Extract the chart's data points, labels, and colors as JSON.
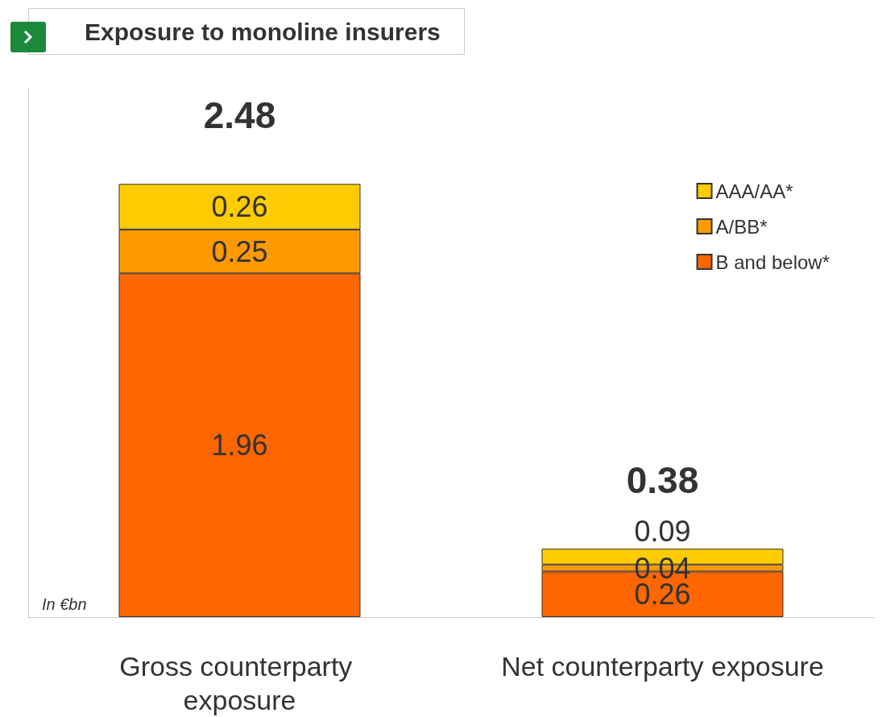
{
  "chart_data": {
    "type": "bar",
    "title": "Exposure to monoline insurers",
    "stacked": true,
    "relative": false,
    "categories": [
      "Gross counterparty exposure",
      "Net counterparty exposure"
    ],
    "series": [
      {
        "name": "B and below*",
        "color": "#ff6600",
        "values": [
          1.96,
          0.26
        ]
      },
      {
        "name": "A/BB*",
        "color": "#ff9900",
        "values": [
          0.25,
          0.04
        ]
      },
      {
        "name": "AAA/AA*",
        "color": "#ffcc00",
        "values": [
          0.26,
          0.09
        ]
      }
    ],
    "data_labels": true,
    "totals": [
      "2.48",
      "0.38"
    ],
    "legend": "top right",
    "grid": false,
    "annotations": [
      "In €bn"
    ]
  }
}
